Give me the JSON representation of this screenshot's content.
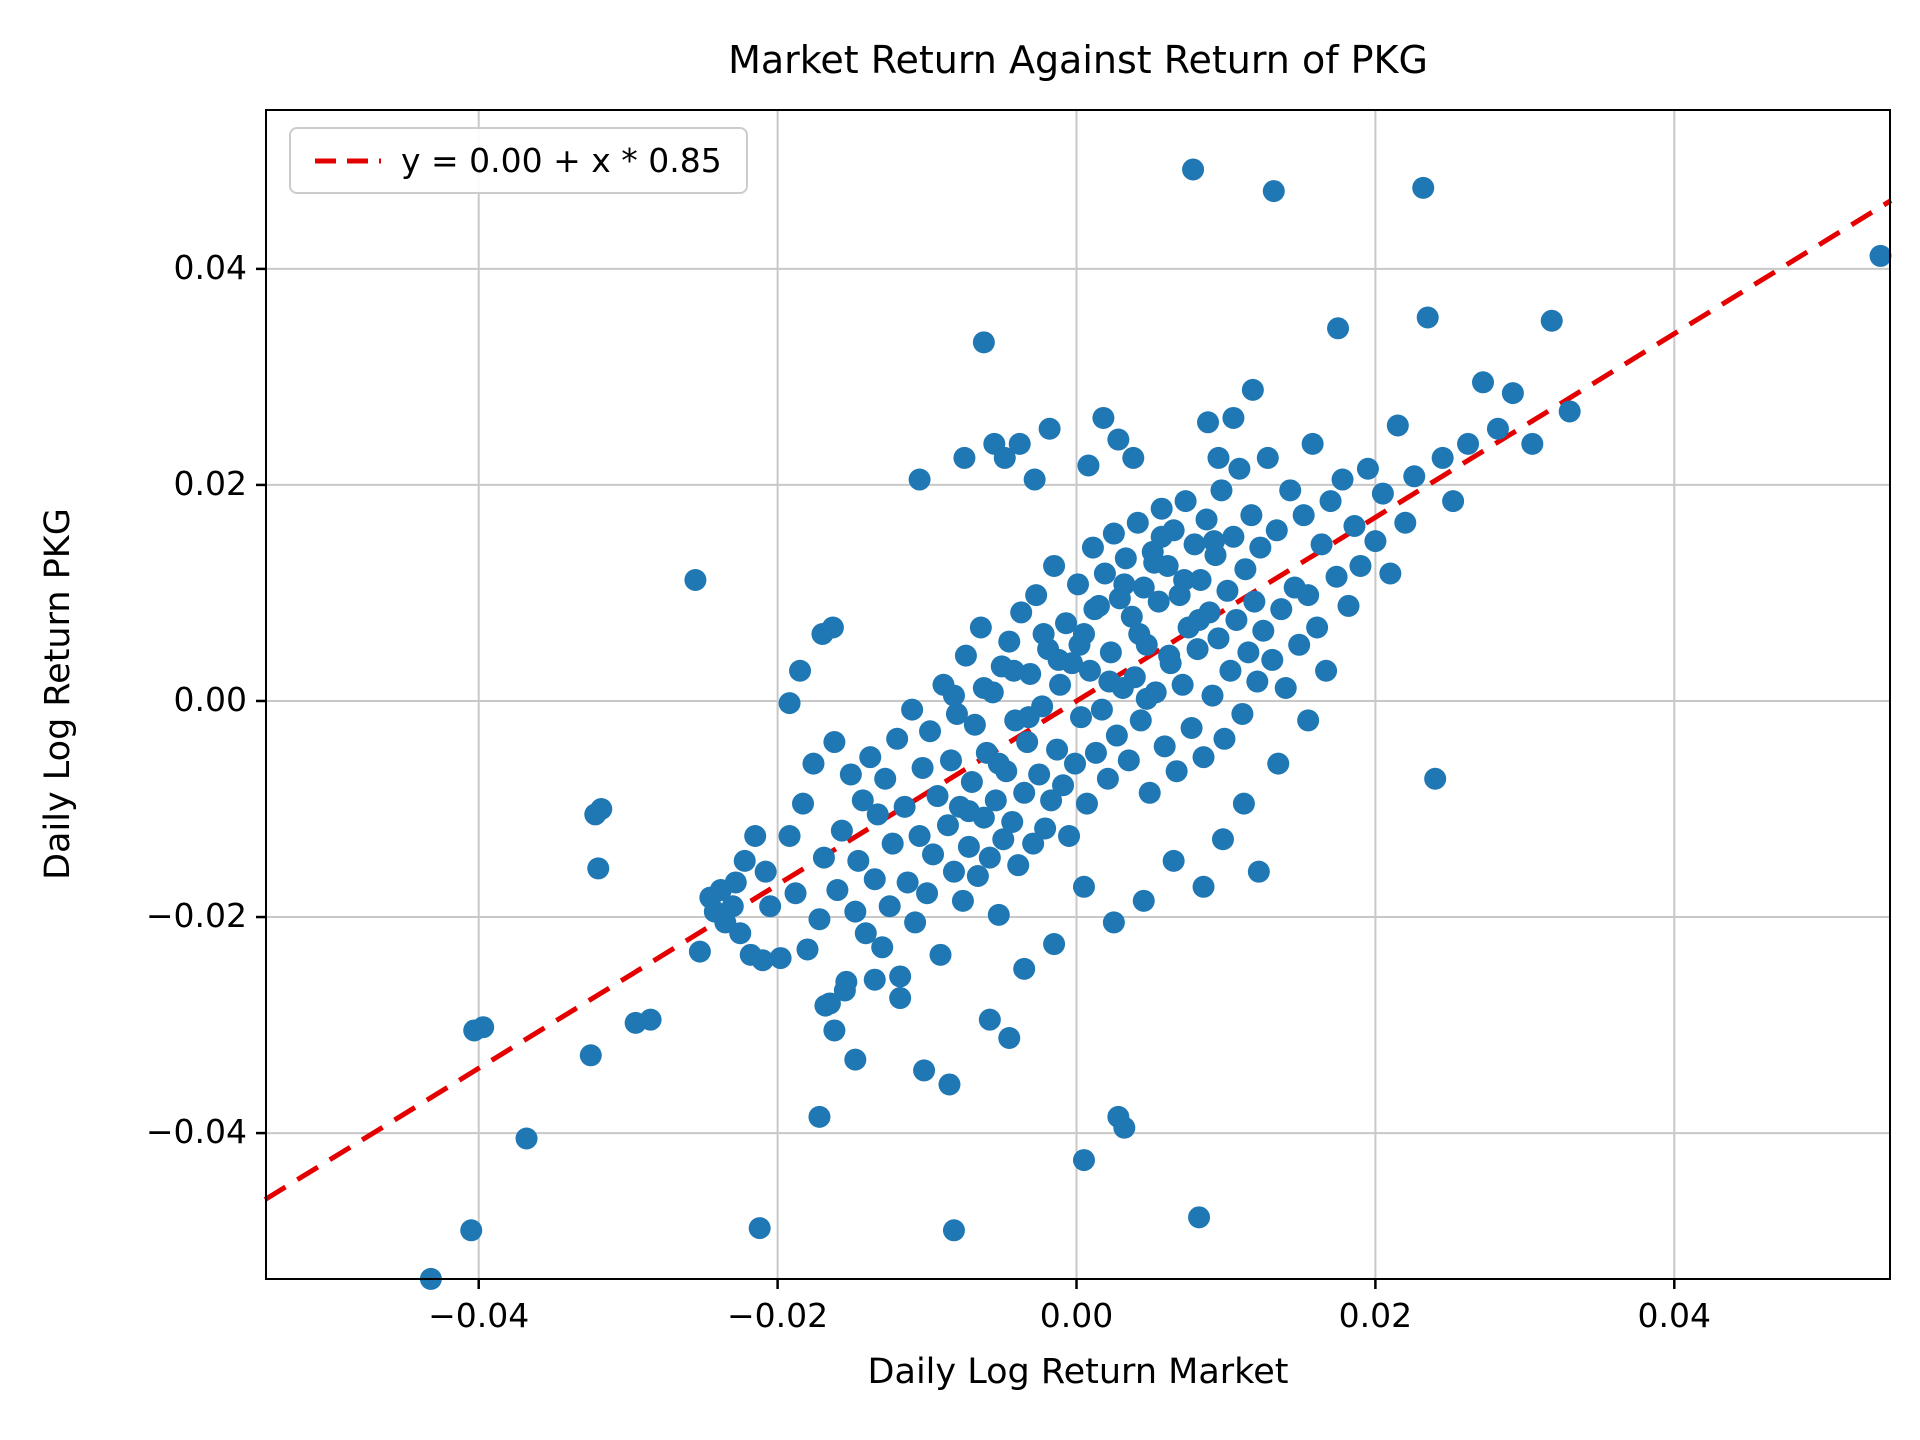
{
  "chart_data": {
    "type": "scatter",
    "title": "Market Return Against Return of PKG",
    "xlabel": "Daily Log Return Market",
    "ylabel": "Daily Log Return PKG",
    "xlim": [
      -0.0543,
      0.0545
    ],
    "ylim": [
      -0.0536,
      0.0548
    ],
    "grid": true,
    "xticks": {
      "values": [
        -0.04,
        -0.02,
        0.0,
        0.02,
        0.04
      ],
      "labels": [
        "−0.04",
        "−0.02",
        "0.00",
        "0.02",
        "0.04"
      ]
    },
    "yticks": {
      "values": [
        -0.04,
        -0.02,
        0.0,
        0.02,
        0.04
      ],
      "labels": [
        "−0.04",
        "−0.02",
        "0.00",
        "0.02",
        "0.04"
      ]
    },
    "legend": {
      "label": "y = 0.00 + x * 0.85",
      "position": "upper left"
    },
    "fit_line": {
      "intercept": 0.0,
      "slope": 0.85,
      "style": "dashed",
      "color": "#e50000"
    },
    "marker_color": "#1f77b4",
    "grid_color": "#c8c8c8",
    "spine_color": "#000000",
    "points": [
      [
        -0.0205,
        -0.019
      ],
      [
        -0.0198,
        -0.0238
      ],
      [
        -0.0192,
        -0.0125
      ],
      [
        -0.0188,
        -0.0178
      ],
      [
        -0.0183,
        -0.0095
      ],
      [
        -0.018,
        -0.023
      ],
      [
        -0.0176,
        -0.0058
      ],
      [
        -0.0172,
        -0.0202
      ],
      [
        -0.0169,
        -0.0145
      ],
      [
        -0.0165,
        -0.028
      ],
      [
        -0.0162,
        -0.0038
      ],
      [
        -0.016,
        -0.0175
      ],
      [
        -0.0157,
        -0.012
      ],
      [
        -0.0154,
        -0.026
      ],
      [
        -0.0151,
        -0.0068
      ],
      [
        -0.0148,
        -0.0195
      ],
      [
        -0.0146,
        -0.0148
      ],
      [
        -0.0143,
        -0.0092
      ],
      [
        -0.0141,
        -0.0215
      ],
      [
        -0.0138,
        -0.0052
      ],
      [
        -0.0135,
        -0.0165
      ],
      [
        -0.0133,
        -0.0105
      ],
      [
        -0.013,
        -0.0228
      ],
      [
        -0.0128,
        -0.0072
      ],
      [
        -0.0125,
        -0.019
      ],
      [
        -0.0123,
        -0.0132
      ],
      [
        -0.012,
        -0.0035
      ],
      [
        -0.0118,
        -0.0255
      ],
      [
        -0.0115,
        -0.0098
      ],
      [
        -0.0113,
        -0.0168
      ],
      [
        -0.011,
        -0.0008
      ],
      [
        -0.0108,
        -0.0205
      ],
      [
        -0.0105,
        -0.0125
      ],
      [
        -0.0103,
        -0.0062
      ],
      [
        -0.01,
        -0.0178
      ],
      [
        -0.0098,
        -0.0028
      ],
      [
        -0.0096,
        -0.0142
      ],
      [
        -0.0093,
        -0.0088
      ],
      [
        -0.0091,
        -0.0235
      ],
      [
        -0.0089,
        0.0015
      ],
      [
        -0.0086,
        -0.0115
      ],
      [
        -0.0084,
        -0.0055
      ],
      [
        -0.0082,
        -0.0158
      ],
      [
        -0.008,
        -0.0012
      ],
      [
        -0.0078,
        -0.0098
      ],
      [
        -0.0076,
        -0.0185
      ],
      [
        -0.0074,
        0.0042
      ],
      [
        -0.0072,
        -0.0135
      ],
      [
        -0.007,
        -0.0075
      ],
      [
        -0.0068,
        -0.0022
      ],
      [
        -0.0066,
        -0.0162
      ],
      [
        -0.0064,
        0.0068
      ],
      [
        -0.0062,
        -0.0108
      ],
      [
        -0.006,
        -0.0048
      ],
      [
        -0.0058,
        -0.0145
      ],
      [
        -0.0056,
        0.0008
      ],
      [
        -0.0054,
        -0.0092
      ],
      [
        -0.0052,
        -0.0198
      ],
      [
        -0.005,
        0.0032
      ],
      [
        -0.0049,
        -0.0128
      ],
      [
        -0.0047,
        -0.0065
      ],
      [
        -0.0045,
        0.0055
      ],
      [
        -0.0043,
        -0.0112
      ],
      [
        -0.0041,
        -0.0018
      ],
      [
        -0.0039,
        -0.0152
      ],
      [
        -0.0037,
        0.0082
      ],
      [
        -0.0035,
        -0.0085
      ],
      [
        -0.0033,
        -0.0038
      ],
      [
        -0.0031,
        0.0025
      ],
      [
        -0.0029,
        -0.0132
      ],
      [
        -0.0027,
        0.0098
      ],
      [
        -0.0025,
        -0.0068
      ],
      [
        -0.0023,
        -0.0005
      ],
      [
        -0.0021,
        -0.0118
      ],
      [
        -0.0019,
        0.0048
      ],
      [
        -0.0017,
        -0.0092
      ],
      [
        -0.0015,
        0.0125
      ],
      [
        -0.0013,
        -0.0045
      ],
      [
        -0.0011,
        0.0015
      ],
      [
        -0.0009,
        -0.0078
      ],
      [
        -0.0007,
        0.0072
      ],
      [
        -0.0005,
        -0.0125
      ],
      [
        -0.0003,
        0.0035
      ],
      [
        -0.0001,
        -0.0058
      ],
      [
        0.0001,
        0.0108
      ],
      [
        0.0003,
        -0.0015
      ],
      [
        0.0005,
        0.0062
      ],
      [
        0.0007,
        -0.0095
      ],
      [
        0.0009,
        0.0028
      ],
      [
        0.0011,
        0.0142
      ],
      [
        0.0013,
        -0.0048
      ],
      [
        0.0015,
        0.0088
      ],
      [
        0.0017,
        -0.0008
      ],
      [
        0.0019,
        0.0118
      ],
      [
        0.0021,
        -0.0072
      ],
      [
        0.0023,
        0.0045
      ],
      [
        0.0025,
        0.0155
      ],
      [
        0.0027,
        -0.0032
      ],
      [
        0.0029,
        0.0095
      ],
      [
        0.0031,
        0.0012
      ],
      [
        0.0033,
        0.0132
      ],
      [
        0.0035,
        -0.0055
      ],
      [
        0.0037,
        0.0078
      ],
      [
        0.0039,
        0.0022
      ],
      [
        0.0041,
        0.0165
      ],
      [
        0.0043,
        -0.0018
      ],
      [
        0.0045,
        0.0105
      ],
      [
        0.0047,
        0.0052
      ],
      [
        0.0049,
        -0.0085
      ],
      [
        0.0051,
        0.0138
      ],
      [
        0.0053,
        0.0008
      ],
      [
        0.0055,
        0.0092
      ],
      [
        0.0057,
        0.0178
      ],
      [
        0.0059,
        -0.0042
      ],
      [
        0.0061,
        0.0125
      ],
      [
        0.0063,
        0.0035
      ],
      [
        0.0065,
        0.0158
      ],
      [
        0.0067,
        -0.0065
      ],
      [
        0.0069,
        0.0098
      ],
      [
        0.0071,
        0.0015
      ],
      [
        0.0073,
        0.0185
      ],
      [
        0.0075,
        0.0068
      ],
      [
        0.0077,
        -0.0025
      ],
      [
        0.0079,
        0.0145
      ],
      [
        0.0081,
        0.0048
      ],
      [
        0.0083,
        0.0112
      ],
      [
        0.0085,
        -0.0052
      ],
      [
        0.0087,
        0.0168
      ],
      [
        0.0089,
        0.0082
      ],
      [
        0.0091,
        0.0005
      ],
      [
        0.0093,
        0.0135
      ],
      [
        0.0095,
        0.0058
      ],
      [
        0.0097,
        0.0195
      ],
      [
        0.0099,
        -0.0035
      ],
      [
        0.0101,
        0.0102
      ],
      [
        0.0103,
        0.0028
      ],
      [
        0.0105,
        0.0152
      ],
      [
        0.0107,
        0.0075
      ],
      [
        0.0109,
        0.0215
      ],
      [
        0.0111,
        -0.0012
      ],
      [
        0.0113,
        0.0122
      ],
      [
        0.0115,
        0.0045
      ],
      [
        0.0117,
        0.0172
      ],
      [
        0.0119,
        0.0092
      ],
      [
        0.0121,
        0.0018
      ],
      [
        0.0123,
        0.0142
      ],
      [
        0.0125,
        0.0065
      ],
      [
        0.0128,
        0.0225
      ],
      [
        0.0131,
        0.0038
      ],
      [
        0.0134,
        0.0158
      ],
      [
        0.0137,
        0.0085
      ],
      [
        0.014,
        0.0012
      ],
      [
        0.0143,
        0.0195
      ],
      [
        0.0146,
        0.0105
      ],
      [
        0.0149,
        0.0052
      ],
      [
        0.0152,
        0.0172
      ],
      [
        0.0155,
        0.0098
      ],
      [
        0.0158,
        0.0238
      ],
      [
        0.0161,
        0.0068
      ],
      [
        0.0164,
        0.0145
      ],
      [
        0.0167,
        0.0028
      ],
      [
        0.017,
        0.0185
      ],
      [
        0.0174,
        0.0115
      ],
      [
        0.0178,
        0.0205
      ],
      [
        0.0182,
        0.0088
      ],
      [
        0.0186,
        0.0162
      ],
      [
        0.019,
        0.0125
      ],
      [
        0.0195,
        0.0215
      ],
      [
        0.02,
        0.0148
      ],
      [
        0.0205,
        0.0192
      ],
      [
        0.021,
        0.0118
      ],
      [
        0.0215,
        0.0255
      ],
      [
        0.022,
        0.0165
      ],
      [
        0.0226,
        0.0208
      ],
      [
        0.0232,
        0.0475
      ],
      [
        0.0235,
        0.0355
      ],
      [
        0.024,
        -0.0072
      ],
      [
        0.0245,
        0.0225
      ],
      [
        0.0252,
        0.0185
      ],
      [
        0.0262,
        0.0238
      ],
      [
        0.0272,
        0.0295
      ],
      [
        0.0282,
        0.0252
      ],
      [
        0.0292,
        0.0285
      ],
      [
        0.0305,
        0.0238
      ],
      [
        0.0318,
        0.0352
      ],
      [
        0.033,
        0.0268
      ],
      [
        0.0538,
        0.0412
      ],
      [
        -0.0432,
        -0.0535
      ],
      [
        -0.0405,
        -0.049
      ],
      [
        -0.0403,
        -0.0305
      ],
      [
        -0.0397,
        -0.0302
      ],
      [
        -0.0368,
        -0.0405
      ],
      [
        -0.0325,
        -0.0328
      ],
      [
        -0.0322,
        -0.0105
      ],
      [
        -0.032,
        -0.0155
      ],
      [
        -0.0318,
        -0.01
      ],
      [
        -0.0295,
        -0.0298
      ],
      [
        -0.0285,
        -0.0295
      ],
      [
        -0.0255,
        0.0112
      ],
      [
        -0.0252,
        -0.0232
      ],
      [
        -0.0245,
        -0.0182
      ],
      [
        -0.0242,
        -0.0195
      ],
      [
        -0.0238,
        -0.0175
      ],
      [
        -0.0235,
        -0.0205
      ],
      [
        -0.023,
        -0.019
      ],
      [
        -0.0228,
        -0.0168
      ],
      [
        -0.0225,
        -0.0215
      ],
      [
        -0.0222,
        -0.0148
      ],
      [
        -0.0218,
        -0.0235
      ],
      [
        -0.0215,
        -0.0125
      ],
      [
        -0.0212,
        -0.0488
      ],
      [
        -0.021,
        -0.024
      ],
      [
        -0.0208,
        -0.0158
      ],
      [
        -0.0172,
        -0.0385
      ],
      [
        -0.0168,
        -0.0282
      ],
      [
        -0.0162,
        -0.0305
      ],
      [
        -0.0155,
        -0.0268
      ],
      [
        -0.0148,
        -0.0332
      ],
      [
        -0.0135,
        -0.0258
      ],
      [
        -0.0118,
        -0.0275
      ],
      [
        -0.0102,
        -0.0342
      ],
      [
        -0.0085,
        -0.0355
      ],
      [
        -0.0082,
        -0.049
      ],
      [
        -0.0058,
        -0.0295
      ],
      [
        -0.0045,
        -0.0312
      ],
      [
        0.0005,
        -0.0425
      ],
      [
        0.0028,
        -0.0385
      ],
      [
        0.0032,
        -0.0395
      ],
      [
        0.0082,
        -0.0478
      ],
      [
        -0.0062,
        0.0332
      ],
      [
        0.0078,
        0.0492
      ],
      [
        0.0132,
        0.0472
      ],
      [
        0.0175,
        0.0345
      ],
      [
        -0.0105,
        0.0205
      ],
      [
        -0.0075,
        0.0225
      ],
      [
        -0.0055,
        0.0238
      ],
      [
        0.0095,
        0.0225
      ],
      [
        0.0088,
        0.0258
      ],
      [
        0.0105,
        0.0262
      ],
      [
        0.0118,
        0.0288
      ],
      [
        -0.0048,
        0.0225
      ],
      [
        -0.0038,
        0.0238
      ],
      [
        -0.0028,
        0.0205
      ],
      [
        -0.0018,
        0.0252
      ],
      [
        0.0008,
        0.0218
      ],
      [
        0.0018,
        0.0262
      ],
      [
        0.0028,
        0.0242
      ],
      [
        0.0038,
        0.0225
      ],
      [
        0.0002,
        0.0052
      ],
      [
        0.0012,
        0.0085
      ],
      [
        0.0022,
        0.0018
      ],
      [
        0.0032,
        0.0108
      ],
      [
        0.0042,
        0.0062
      ],
      [
        0.0052,
        0.0128
      ],
      [
        0.0062,
        0.0042
      ],
      [
        0.0072,
        0.0112
      ],
      [
        0.0082,
        0.0075
      ],
      [
        0.0092,
        0.0148
      ],
      [
        -0.0012,
        0.0038
      ],
      [
        -0.0022,
        0.0062
      ],
      [
        -0.0032,
        -0.0015
      ],
      [
        -0.0042,
        0.0028
      ],
      [
        -0.0052,
        -0.0058
      ],
      [
        -0.0062,
        0.0012
      ],
      [
        -0.0072,
        -0.0102
      ],
      [
        -0.0082,
        0.0005
      ],
      [
        0.0047,
        0.0002
      ],
      [
        0.0057,
        0.0152
      ],
      [
        -0.017,
        0.0062
      ],
      [
        -0.0163,
        0.0068
      ],
      [
        -0.0192,
        -0.0002
      ],
      [
        -0.0185,
        0.0028
      ],
      [
        0.0122,
        -0.0158
      ],
      [
        0.0098,
        -0.0128
      ],
      [
        0.0112,
        -0.0095
      ],
      [
        0.0135,
        -0.0058
      ],
      [
        0.0155,
        -0.0018
      ],
      [
        0.0085,
        -0.0172
      ],
      [
        0.0065,
        -0.0148
      ],
      [
        0.0045,
        -0.0185
      ],
      [
        0.0025,
        -0.0205
      ],
      [
        0.0005,
        -0.0172
      ],
      [
        -0.0015,
        -0.0225
      ],
      [
        -0.0035,
        -0.0248
      ]
    ]
  }
}
